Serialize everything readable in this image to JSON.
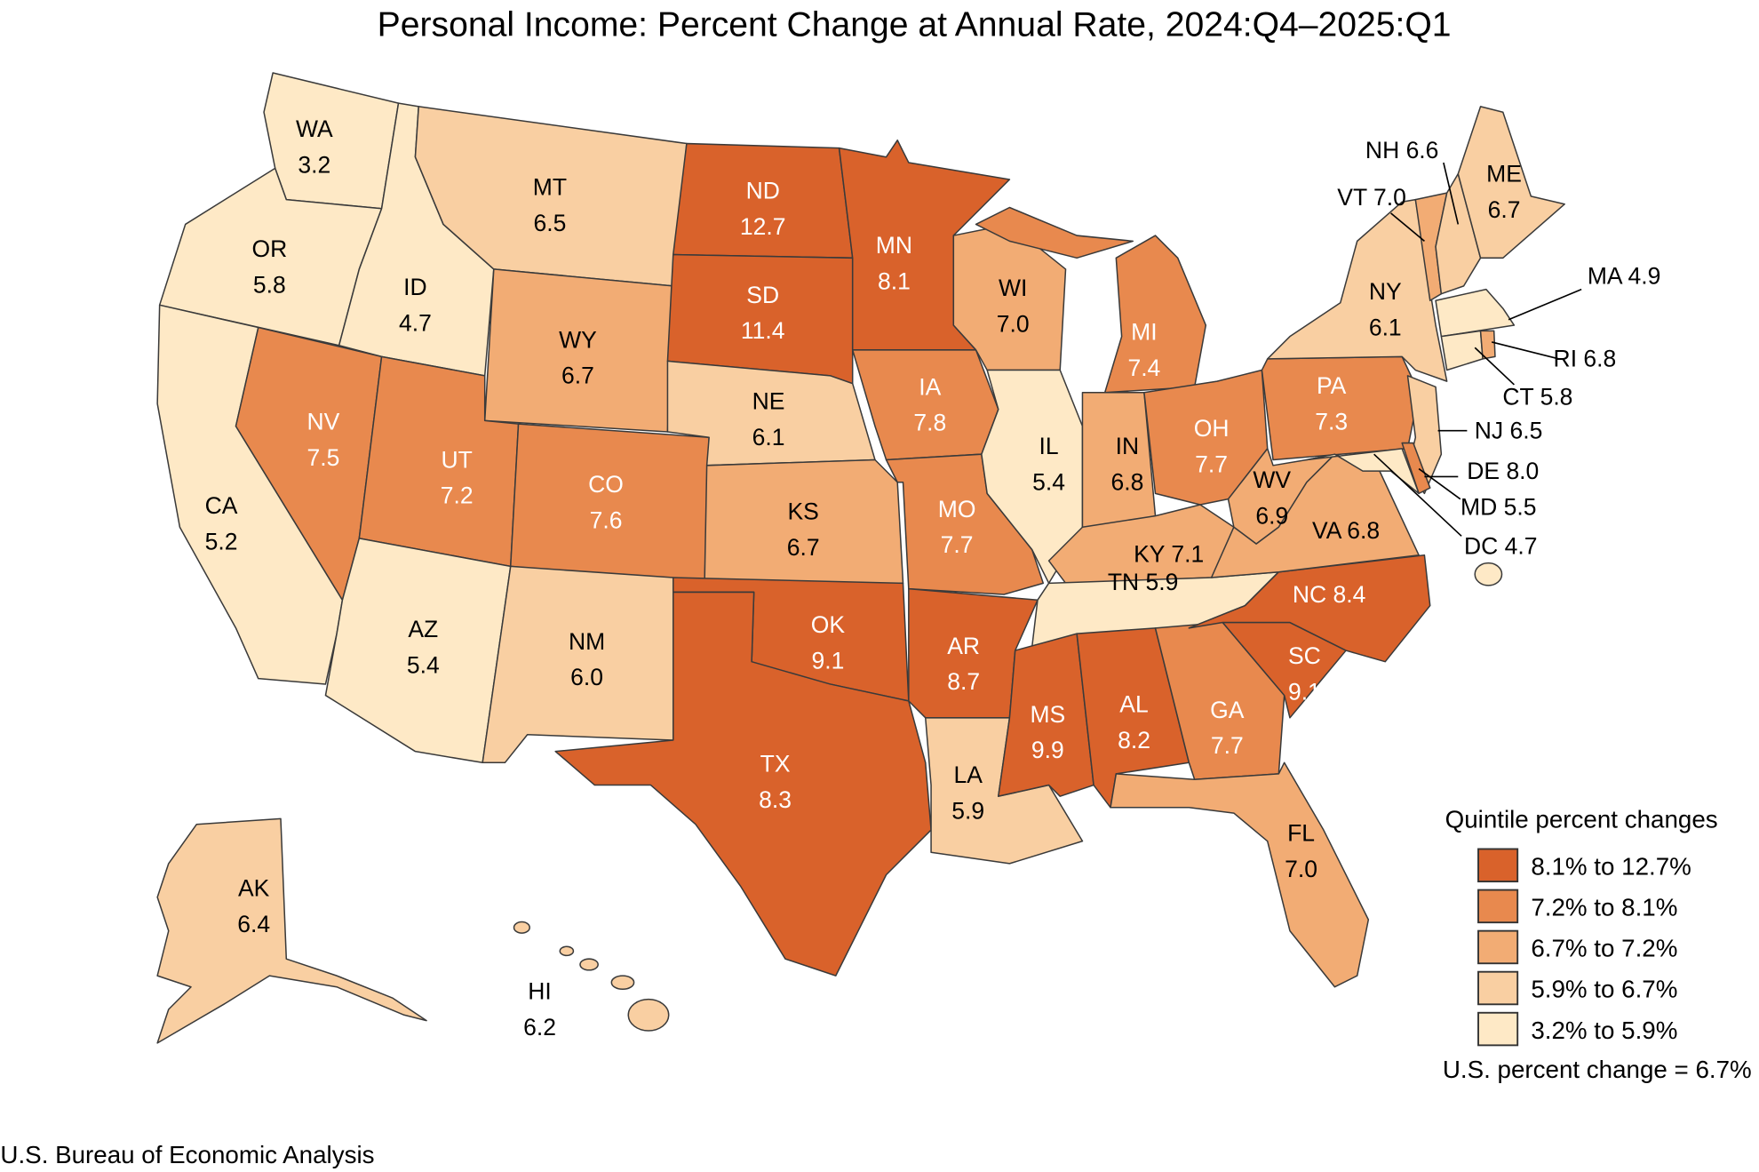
{
  "title": "Personal Income: Percent Change at Annual Rate, 2024:Q4–2025:Q1",
  "source": "U.S. Bureau of Economic Analysis",
  "legend": {
    "title": "Quintile percent changes",
    "items": [
      {
        "label": "8.1% to 12.7%",
        "color": "#D9622B"
      },
      {
        "label": "7.2% to 8.1%",
        "color": "#E8894E"
      },
      {
        "label": "6.7% to 7.2%",
        "color": "#F2AC74"
      },
      {
        "label": "5.9% to 6.7%",
        "color": "#F9CFA2"
      },
      {
        "label": "3.2% to 5.9%",
        "color": "#FEE9C6"
      }
    ],
    "us_change": "U.S. percent change = 6.7%"
  },
  "states": [
    {
      "abbr": "WA",
      "value": "3.2",
      "q": 4
    },
    {
      "abbr": "OR",
      "value": "5.8",
      "q": 4
    },
    {
      "abbr": "CA",
      "value": "5.2",
      "q": 4
    },
    {
      "abbr": "ID",
      "value": "4.7",
      "q": 4
    },
    {
      "abbr": "NV",
      "value": "7.5",
      "q": 1
    },
    {
      "abbr": "MT",
      "value": "6.5",
      "q": 3
    },
    {
      "abbr": "WY",
      "value": "6.7",
      "q": 2
    },
    {
      "abbr": "UT",
      "value": "7.2",
      "q": 1
    },
    {
      "abbr": "AZ",
      "value": "5.4",
      "q": 4
    },
    {
      "abbr": "CO",
      "value": "7.6",
      "q": 1
    },
    {
      "abbr": "NM",
      "value": "6.0",
      "q": 3
    },
    {
      "abbr": "ND",
      "value": "12.7",
      "q": 0
    },
    {
      "abbr": "SD",
      "value": "11.4",
      "q": 0
    },
    {
      "abbr": "NE",
      "value": "6.1",
      "q": 3
    },
    {
      "abbr": "KS",
      "value": "6.7",
      "q": 2
    },
    {
      "abbr": "OK",
      "value": "9.1",
      "q": 0
    },
    {
      "abbr": "TX",
      "value": "8.3",
      "q": 0
    },
    {
      "abbr": "MN",
      "value": "8.1",
      "q": 0
    },
    {
      "abbr": "IA",
      "value": "7.8",
      "q": 1
    },
    {
      "abbr": "MO",
      "value": "7.7",
      "q": 1
    },
    {
      "abbr": "AR",
      "value": "8.7",
      "q": 0
    },
    {
      "abbr": "LA",
      "value": "5.9",
      "q": 3
    },
    {
      "abbr": "WI",
      "value": "7.0",
      "q": 2
    },
    {
      "abbr": "IL",
      "value": "5.4",
      "q": 4
    },
    {
      "abbr": "MI",
      "value": "7.4",
      "q": 1
    },
    {
      "abbr": "IN",
      "value": "6.8",
      "q": 2
    },
    {
      "abbr": "OH",
      "value": "7.7",
      "q": 1
    },
    {
      "abbr": "KY",
      "value": "7.1",
      "q": 2
    },
    {
      "abbr": "TN",
      "value": "5.9",
      "q": 4
    },
    {
      "abbr": "MS",
      "value": "9.9",
      "q": 0
    },
    {
      "abbr": "AL",
      "value": "8.2",
      "q": 0
    },
    {
      "abbr": "GA",
      "value": "7.7",
      "q": 1
    },
    {
      "abbr": "FL",
      "value": "7.0",
      "q": 2
    },
    {
      "abbr": "SC",
      "value": "9.1",
      "q": 0
    },
    {
      "abbr": "NC",
      "value": "8.4",
      "q": 0
    },
    {
      "abbr": "WV",
      "value": "6.9",
      "q": 2
    },
    {
      "abbr": "VA",
      "value": "6.8",
      "q": 2
    },
    {
      "abbr": "PA",
      "value": "7.3",
      "q": 1
    },
    {
      "abbr": "NY",
      "value": "6.1",
      "q": 3
    },
    {
      "abbr": "NJ",
      "value": "6.5",
      "q": 3
    },
    {
      "abbr": "DE",
      "value": "8.0",
      "q": 1
    },
    {
      "abbr": "MD",
      "value": "5.5",
      "q": 4
    },
    {
      "abbr": "DC",
      "value": "4.7",
      "q": 4
    },
    {
      "abbr": "VT",
      "value": "7.0",
      "q": 2
    },
    {
      "abbr": "NH",
      "value": "6.6",
      "q": 3
    },
    {
      "abbr": "ME",
      "value": "6.7",
      "q": 3
    },
    {
      "abbr": "MA",
      "value": "4.9",
      "q": 4
    },
    {
      "abbr": "CT",
      "value": "5.8",
      "q": 4
    },
    {
      "abbr": "RI",
      "value": "6.8",
      "q": 2
    },
    {
      "abbr": "AK",
      "value": "6.4",
      "q": 3
    },
    {
      "abbr": "HI",
      "value": "6.2",
      "q": 3
    }
  ]
}
